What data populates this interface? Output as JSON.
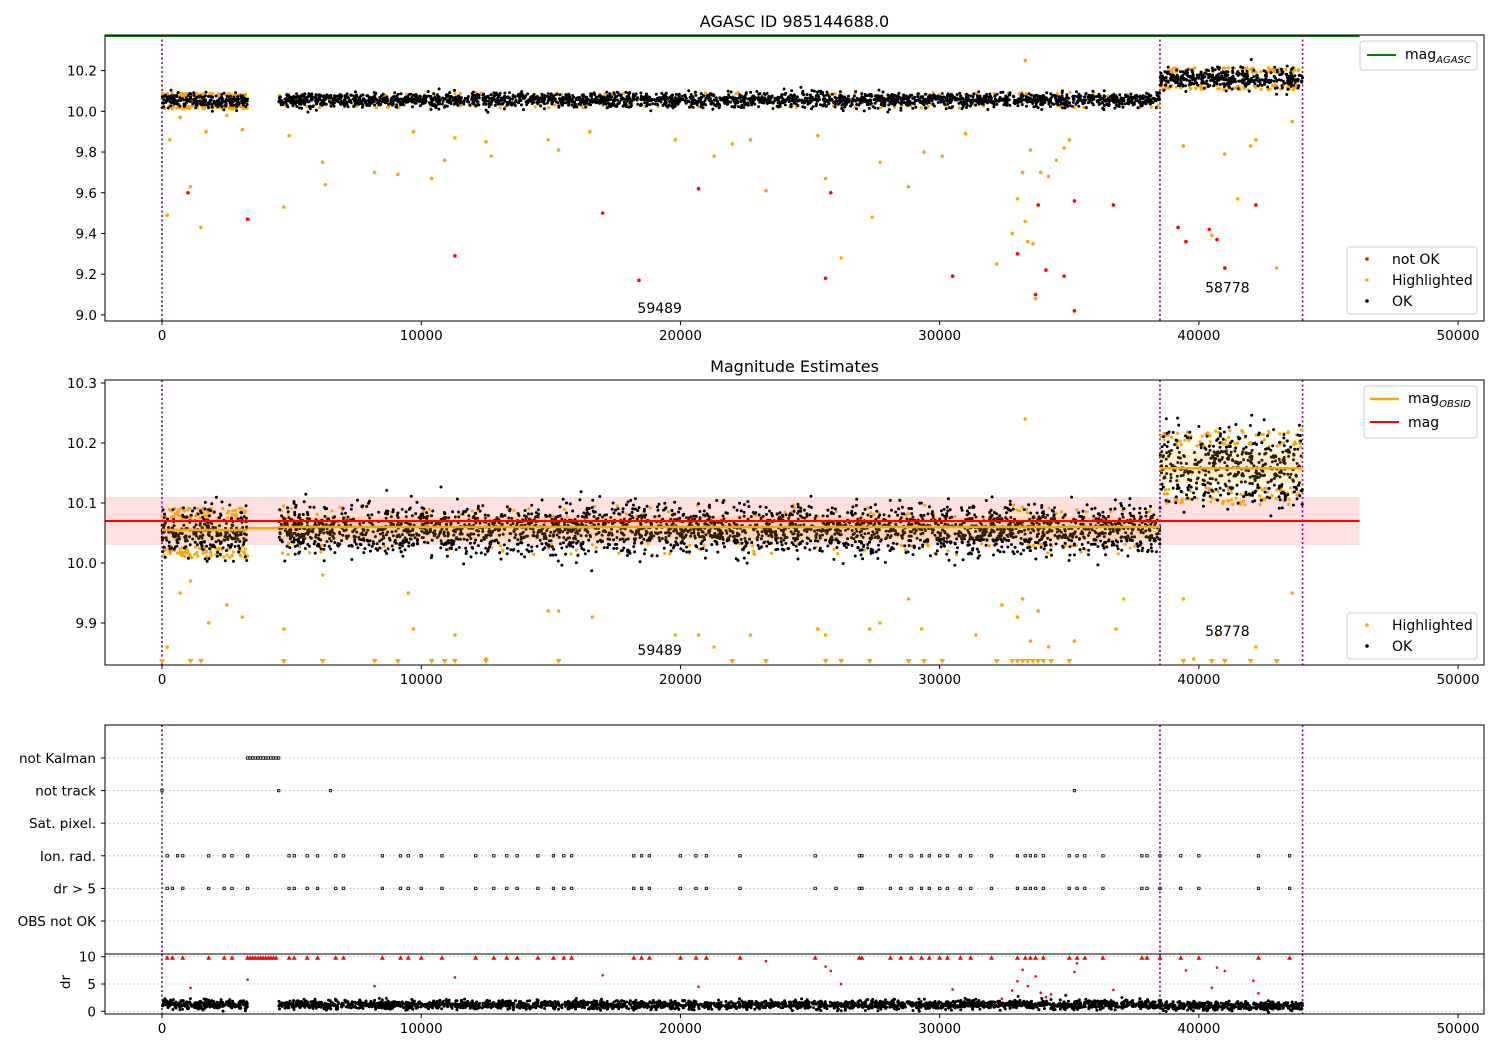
{
  "colors": {
    "ok": "#000000",
    "highlighted": "#ffa500",
    "not_ok": "#ff0000",
    "agasc": "#008000",
    "obsid": "#ffa500",
    "mag": "#ff0000",
    "band": "#ffcccc",
    "vline": "#800080"
  },
  "chart_data": [
    {
      "type": "scatter",
      "title": "AGASC ID 985144688.0",
      "xlim": [
        -2200,
        51000
      ],
      "ylim": [
        8.97,
        10.375
      ],
      "xticks": [
        0,
        10000,
        20000,
        30000,
        40000,
        50000
      ],
      "yticks": [
        9.0,
        9.2,
        9.4,
        9.6,
        9.8,
        10.0,
        10.2
      ],
      "xtick_labels": [
        "0",
        "10000",
        "20000",
        "30000",
        "40000",
        "50000"
      ],
      "ytick_labels": [
        "9.0",
        "9.2",
        "9.4",
        "9.6",
        "9.8",
        "10.0",
        "10.2"
      ],
      "observation_boundaries": [
        0,
        38500,
        44000
      ],
      "observation_labels": [
        {
          "text": "59489",
          "x": 19200,
          "y": 9.01
        },
        {
          "text": "58778",
          "x": 41100,
          "y": 9.11
        }
      ],
      "ok_bands": [
        {
          "x0": 0,
          "x1": 3300,
          "y_center": 10.05,
          "spread": 0.035
        },
        {
          "x0": 4500,
          "x1": 38500,
          "y_center": 10.055,
          "spread": 0.035
        },
        {
          "x0": 38500,
          "x1": 44000,
          "y_center": 10.16,
          "spread": 0.05
        }
      ],
      "agasc_mag": 10.37,
      "agasc_x_range": [
        -2200,
        46200
      ],
      "not_ok_points": [
        [
          1000,
          9.6
        ],
        [
          3300,
          9.47
        ],
        [
          11300,
          9.29
        ],
        [
          17000,
          9.5
        ],
        [
          18400,
          9.17
        ],
        [
          20700,
          9.62
        ],
        [
          25600,
          9.18
        ],
        [
          25800,
          9.6
        ],
        [
          30500,
          9.19
        ],
        [
          33000,
          9.3
        ],
        [
          33700,
          9.1
        ],
        [
          33800,
          9.54
        ],
        [
          34100,
          9.22
        ],
        [
          34800,
          9.19
        ],
        [
          35200,
          9.02
        ],
        [
          35200,
          9.56
        ],
        [
          36700,
          9.54
        ],
        [
          39200,
          9.43
        ],
        [
          39500,
          9.36
        ],
        [
          40400,
          9.42
        ],
        [
          40700,
          9.37
        ],
        [
          41000,
          9.23
        ],
        [
          42200,
          9.54
        ]
      ],
      "highlighted_points": [
        [
          200,
          9.49
        ],
        [
          300,
          9.86
        ],
        [
          700,
          9.97
        ],
        [
          1100,
          9.63
        ],
        [
          1500,
          9.43
        ],
        [
          1700,
          9.9
        ],
        [
          2500,
          9.98
        ],
        [
          3100,
          9.91
        ],
        [
          4700,
          9.53
        ],
        [
          4900,
          9.88
        ],
        [
          6200,
          9.75
        ],
        [
          6300,
          9.64
        ],
        [
          8200,
          9.7
        ],
        [
          9100,
          9.69
        ],
        [
          9700,
          9.9
        ],
        [
          10400,
          9.67
        ],
        [
          10900,
          9.76
        ],
        [
          11300,
          9.87
        ],
        [
          12500,
          9.85
        ],
        [
          12700,
          9.78
        ],
        [
          14900,
          9.86
        ],
        [
          15300,
          9.81
        ],
        [
          16500,
          9.9
        ],
        [
          19800,
          9.86
        ],
        [
          21300,
          9.78
        ],
        [
          22000,
          9.84
        ],
        [
          22700,
          9.86
        ],
        [
          23300,
          9.61
        ],
        [
          25300,
          9.88
        ],
        [
          25600,
          9.67
        ],
        [
          26200,
          9.28
        ],
        [
          27400,
          9.48
        ],
        [
          27700,
          9.75
        ],
        [
          28800,
          9.63
        ],
        [
          29400,
          9.8
        ],
        [
          30100,
          9.78
        ],
        [
          31000,
          9.89
        ],
        [
          32200,
          9.25
        ],
        [
          32800,
          9.4
        ],
        [
          33000,
          9.57
        ],
        [
          33200,
          9.7
        ],
        [
          33300,
          9.46
        ],
        [
          33400,
          9.36
        ],
        [
          33500,
          9.81
        ],
        [
          33600,
          9.35
        ],
        [
          33700,
          9.08
        ],
        [
          33900,
          9.7
        ],
        [
          34200,
          9.68
        ],
        [
          34500,
          9.76
        ],
        [
          34800,
          9.82
        ],
        [
          35000,
          9.86
        ],
        [
          33300,
          10.25
        ],
        [
          39400,
          9.83
        ],
        [
          40500,
          9.39
        ],
        [
          41000,
          9.79
        ],
        [
          41500,
          9.57
        ],
        [
          42000,
          9.83
        ],
        [
          42200,
          9.86
        ],
        [
          43000,
          9.23
        ],
        [
          43600,
          9.95
        ]
      ]
    },
    {
      "type": "scatter",
      "title": "Magnitude Estimates",
      "xlim": [
        -2200,
        51000
      ],
      "ylim": [
        9.83,
        10.305
      ],
      "xticks": [
        0,
        10000,
        20000,
        30000,
        40000,
        50000
      ],
      "yticks": [
        9.9,
        10.0,
        10.1,
        10.2,
        10.3
      ],
      "xtick_labels": [
        "0",
        "10000",
        "20000",
        "30000",
        "40000",
        "50000"
      ],
      "ytick_labels": [
        "9.9",
        "10.0",
        "10.1",
        "10.2",
        "10.3"
      ],
      "observation_boundaries": [
        0,
        38500,
        44000
      ],
      "observation_labels": [
        {
          "text": "59489",
          "x": 19200,
          "y": 9.847
        },
        {
          "text": "58778",
          "x": 41100,
          "y": 9.878
        }
      ],
      "mag": 10.07,
      "mag_band": [
        10.03,
        10.11
      ],
      "mag_x_range": [
        -2200,
        46200
      ],
      "obsid_means": [
        {
          "x0": 0,
          "x1": 3300,
          "mean": 10.055,
          "std_low": 10.037,
          "std_high": 10.073
        },
        {
          "x0": 3300,
          "x1": 4500,
          "mean": 10.058,
          "std_low": 10.058,
          "std_high": 10.058
        },
        {
          "x0": 4500,
          "x1": 38500,
          "mean": 10.06,
          "std_low": 10.04,
          "std_high": 10.078
        },
        {
          "x0": 38500,
          "x1": 44000,
          "mean": 10.158,
          "std_low": 10.133,
          "std_high": 10.19
        }
      ],
      "ok_bands": [
        {
          "x0": 0,
          "x1": 3300,
          "y_center": 10.05,
          "spread": 0.04
        },
        {
          "x0": 4500,
          "x1": 38500,
          "y_center": 10.055,
          "spread": 0.04
        },
        {
          "x0": 38500,
          "x1": 44000,
          "y_center": 10.16,
          "spread": 0.06
        }
      ],
      "highlighted_points": [
        [
          200,
          9.86
        ],
        [
          700,
          9.95
        ],
        [
          1100,
          9.97
        ],
        [
          1800,
          9.9
        ],
        [
          2500,
          9.93
        ],
        [
          3100,
          9.91
        ],
        [
          4700,
          9.89
        ],
        [
          6200,
          9.98
        ],
        [
          9500,
          9.95
        ],
        [
          9700,
          9.89
        ],
        [
          11300,
          9.88
        ],
        [
          12500,
          9.84
        ],
        [
          14900,
          9.92
        ],
        [
          15300,
          9.92
        ],
        [
          16600,
          9.91
        ],
        [
          19800,
          9.88
        ],
        [
          20700,
          9.88
        ],
        [
          21300,
          9.86
        ],
        [
          22700,
          9.88
        ],
        [
          25300,
          9.89
        ],
        [
          25600,
          9.88
        ],
        [
          27300,
          9.89
        ],
        [
          27700,
          9.9
        ],
        [
          28800,
          9.94
        ],
        [
          29300,
          9.89
        ],
        [
          31400,
          9.88
        ],
        [
          32400,
          9.93
        ],
        [
          33000,
          9.91
        ],
        [
          33200,
          9.94
        ],
        [
          33500,
          9.87
        ],
        [
          33800,
          9.92
        ],
        [
          34200,
          9.86
        ],
        [
          35200,
          9.87
        ],
        [
          36800,
          9.89
        ],
        [
          37100,
          9.94
        ],
        [
          33300,
          10.24
        ],
        [
          39400,
          9.94
        ],
        [
          39800,
          9.84
        ],
        [
          40700,
          9.88
        ],
        [
          42200,
          9.86
        ],
        [
          43600,
          9.95
        ]
      ],
      "clipped_low_points": [
        0,
        1100,
        1500,
        4700,
        6200,
        8200,
        9100,
        10400,
        10900,
        11300,
        12500,
        15300,
        22000,
        23300,
        25600,
        26200,
        27300,
        28800,
        29400,
        30100,
        32200,
        32800,
        33000,
        33200,
        33400,
        33600,
        33800,
        34000,
        34300,
        35000,
        39400,
        40500,
        41000,
        42000,
        43000
      ]
    },
    {
      "type": "scatter",
      "title": "",
      "xlim": [
        -2200,
        51000
      ],
      "xticks": [
        0,
        10000,
        20000,
        30000,
        40000,
        50000
      ],
      "xtick_labels": [
        "0",
        "10000",
        "20000",
        "30000",
        "40000",
        "50000"
      ],
      "observation_boundaries": [
        0,
        38500,
        44000
      ],
      "flag_rows": [
        {
          "label": "not Kalman",
          "x": [
            3300,
            3400,
            3500,
            3600,
            3700,
            3800,
            3900,
            4000,
            4100,
            4200,
            4300,
            4400,
            4500
          ]
        },
        {
          "label": "not track",
          "x": [
            0,
            4500,
            6500,
            35200
          ]
        },
        {
          "label": "Sat. pixel.",
          "x": []
        },
        {
          "label": "Ion. rad.",
          "x": [
            200,
            600,
            800,
            1800,
            2400,
            2700,
            3300,
            4900,
            5100,
            5600,
            6000,
            6700,
            7000,
            8500,
            9200,
            9500,
            10000,
            10800,
            12100,
            12800,
            13300,
            13700,
            14500,
            15100,
            15500,
            15800,
            18200,
            18500,
            18800,
            20000,
            20600,
            21000,
            22300,
            25200,
            26900,
            27000,
            28100,
            28500,
            28900,
            29300,
            29600,
            30000,
            30300,
            30800,
            31200,
            32000,
            33000,
            33300,
            33500,
            33700,
            34000,
            35000,
            35300,
            35600,
            36300,
            37800,
            38000,
            38500,
            39300,
            40000,
            42300,
            43500
          ]
        },
        {
          "label": "dr > 5",
          "x": [
            200,
            400,
            800,
            1800,
            2400,
            2700,
            3300,
            4900,
            5100,
            5600,
            6000,
            6700,
            7000,
            8500,
            9200,
            9500,
            10000,
            10800,
            12100,
            12800,
            13300,
            13700,
            14500,
            15100,
            15500,
            15800,
            18200,
            18500,
            18800,
            20000,
            20600,
            21000,
            22300,
            25200,
            26000,
            26900,
            27000,
            28100,
            28500,
            28900,
            29300,
            29600,
            30000,
            30300,
            30800,
            31200,
            32000,
            33000,
            33300,
            33500,
            33700,
            34000,
            35000,
            35300,
            35600,
            36300,
            37800,
            38000,
            38500,
            39300,
            40000,
            42300,
            43500
          ]
        },
        {
          "label": "OBS not OK",
          "x": []
        }
      ],
      "dr_panel": {
        "ylabel": "dr",
        "ylim": [
          -0.5,
          10.5
        ],
        "yticks": [
          0,
          5,
          10
        ],
        "ytick_labels": [
          "0",
          "5",
          "10"
        ],
        "ok_bands": [
          {
            "x0": 0,
            "x1": 3300,
            "y_center": 1.2,
            "spread": 0.8
          },
          {
            "x0": 4500,
            "x1": 38500,
            "y_center": 1.2,
            "spread": 0.8
          },
          {
            "x0": 38500,
            "x1": 44000,
            "y_center": 1.0,
            "spread": 0.8
          }
        ],
        "clipped_high_x": [
          200,
          400,
          800,
          1800,
          2400,
          2700,
          3300,
          3400,
          3500,
          3600,
          3700,
          3800,
          3900,
          4000,
          4100,
          4200,
          4300,
          4400,
          4900,
          5100,
          5600,
          6000,
          6700,
          7000,
          8500,
          9200,
          9500,
          10000,
          10800,
          12100,
          12800,
          13300,
          13700,
          14500,
          15100,
          15500,
          15800,
          18200,
          18500,
          18800,
          20000,
          20600,
          21000,
          22300,
          25200,
          26900,
          27000,
          28100,
          28500,
          28900,
          29300,
          29600,
          30000,
          30300,
          30800,
          31200,
          32000,
          33000,
          33300,
          33500,
          33700,
          34000,
          35000,
          35300,
          35600,
          36300,
          37800,
          38000,
          38500,
          39300,
          40000,
          42300,
          43500
        ],
        "red_points": [
          [
            1100,
            4.3
          ],
          [
            3300,
            5.8
          ],
          [
            8200,
            4.6
          ],
          [
            11300,
            6.2
          ],
          [
            17000,
            6.6
          ],
          [
            20700,
            4.5
          ],
          [
            23300,
            9.2
          ],
          [
            25600,
            8.2
          ],
          [
            25800,
            7.4
          ],
          [
            26200,
            5.0
          ],
          [
            30500,
            4.0
          ],
          [
            32400,
            2.3
          ],
          [
            32800,
            3.8
          ],
          [
            33000,
            5.5
          ],
          [
            33200,
            7.6
          ],
          [
            33400,
            4.6
          ],
          [
            33700,
            6.4
          ],
          [
            33900,
            3.4
          ],
          [
            34100,
            2.6
          ],
          [
            34300,
            3.1
          ],
          [
            35200,
            7.2
          ],
          [
            35300,
            8.8
          ],
          [
            36700,
            3.9
          ],
          [
            39500,
            7.5
          ],
          [
            40500,
            4.3
          ],
          [
            40700,
            8.0
          ],
          [
            41000,
            7.4
          ],
          [
            42100,
            5.6
          ],
          [
            42300,
            3.3
          ]
        ]
      }
    }
  ],
  "legends": {
    "top_upper": [
      "mag$_{AGASC}$"
    ],
    "top_lower": [
      "not OK",
      "Highlighted",
      "OK"
    ],
    "mid_upper": [
      "mag$_{OBSID}$",
      "mag"
    ],
    "mid_lower": [
      "Highlighted",
      "OK"
    ]
  },
  "legend_text": {
    "agasc_main": "mag",
    "agasc_sub": "AGASC",
    "obsid_main": "mag",
    "obsid_sub": "OBSID",
    "mag": "mag",
    "not_ok": "not OK",
    "highlighted": "Highlighted",
    "ok": "OK"
  }
}
